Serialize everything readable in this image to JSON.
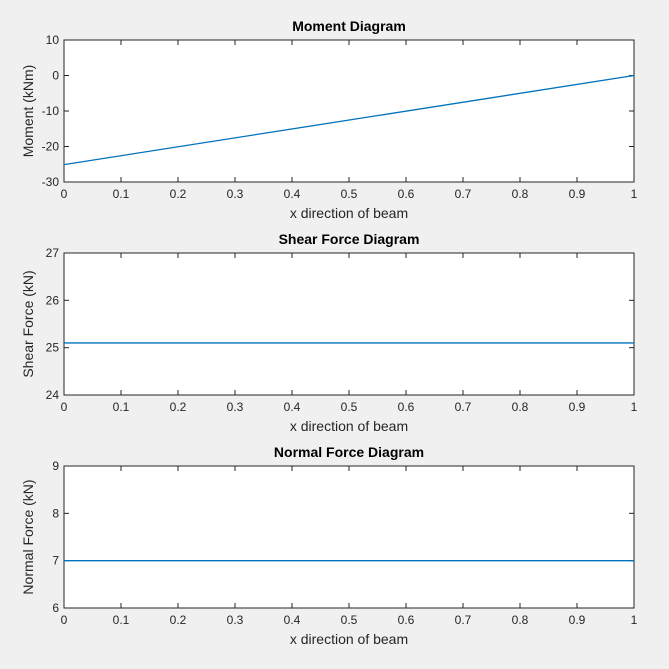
{
  "chart_data": [
    {
      "type": "line",
      "title": "Moment Diagram",
      "xlabel": "x direction of beam",
      "ylabel": "Moment (kNm)",
      "xlim": [
        0,
        1
      ],
      "ylim": [
        -30,
        10
      ],
      "xticks": [
        "0",
        "0.1",
        "0.2",
        "0.3",
        "0.4",
        "0.5",
        "0.6",
        "0.7",
        "0.8",
        "0.9",
        "1"
      ],
      "yticks": [
        "-30",
        "-20",
        "-10",
        "0",
        "10"
      ],
      "grid": false,
      "series": [
        {
          "x": [
            0,
            1
          ],
          "y": [
            -25.1,
            0
          ],
          "color": "#0072bd"
        }
      ]
    },
    {
      "type": "line",
      "title": "Shear Force Diagram",
      "xlabel": "x direction of beam",
      "ylabel": "Shear Force (kN)",
      "xlim": [
        0,
        1
      ],
      "ylim": [
        24,
        27
      ],
      "xticks": [
        "0",
        "0.1",
        "0.2",
        "0.3",
        "0.4",
        "0.5",
        "0.6",
        "0.7",
        "0.8",
        "0.9",
        "1"
      ],
      "yticks": [
        "24",
        "25",
        "26",
        "27"
      ],
      "grid": false,
      "series": [
        {
          "x": [
            0,
            1
          ],
          "y": [
            25.1,
            25.1
          ],
          "color": "#0072bd"
        }
      ]
    },
    {
      "type": "line",
      "title": "Normal Force Diagram",
      "xlabel": "x direction of beam",
      "ylabel": "Normal Force (kN)",
      "xlim": [
        0,
        1
      ],
      "ylim": [
        6,
        9
      ],
      "xticks": [
        "0",
        "0.1",
        "0.2",
        "0.3",
        "0.4",
        "0.5",
        "0.6",
        "0.7",
        "0.8",
        "0.9",
        "1"
      ],
      "yticks": [
        "6",
        "7",
        "8",
        "9"
      ],
      "grid": false,
      "series": [
        {
          "x": [
            0,
            1
          ],
          "y": [
            7,
            7
          ],
          "color": "#0072bd"
        }
      ]
    }
  ]
}
